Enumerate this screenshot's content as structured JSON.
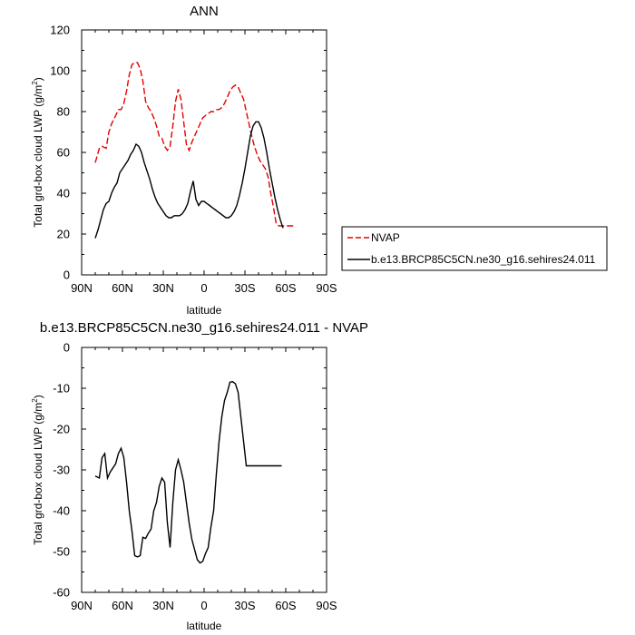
{
  "chart_data": [
    {
      "type": "line",
      "title": "ANN",
      "xlabel": "latitude",
      "ylabel": "Total grd-box cloud LWP (g/m",
      "ylabel_sup": "2",
      "ylabel_close": ")",
      "xlim": [
        90,
        -90
      ],
      "ylim": [
        0,
        120
      ],
      "xticks": [
        90,
        60,
        30,
        0,
        -30,
        -60,
        -90
      ],
      "xtick_labels": [
        "90N",
        "60N",
        "30N",
        "0",
        "30S",
        "60S",
        "90S"
      ],
      "yticks": [
        0,
        20,
        40,
        60,
        80,
        100,
        120
      ],
      "ytick_labels": [
        "0",
        "20",
        "40",
        "60",
        "80",
        "100",
        "120"
      ],
      "legend_position": "right",
      "series": [
        {
          "name": "NVAP",
          "color": "#e60000",
          "dash": "dashed",
          "x": [
            80,
            77,
            75,
            72,
            70,
            68,
            65,
            63,
            61,
            59,
            57,
            55,
            53,
            51,
            49,
            47,
            45,
            43,
            41,
            39,
            37,
            35,
            33,
            31,
            29,
            27,
            25,
            23,
            21,
            19,
            17,
            15,
            13,
            11,
            9,
            7,
            5,
            3,
            1,
            -1,
            -3,
            -5,
            -7,
            -9,
            -11,
            -13,
            -15,
            -17,
            -19,
            -21,
            -23,
            -25,
            -27,
            -29,
            -31,
            -33,
            -35,
            -37,
            -39,
            -41,
            -43,
            -45,
            -47,
            -49,
            -51,
            -53,
            -55,
            -57,
            -59,
            -61,
            -63,
            -65,
            -67,
            -69,
            -71,
            -73,
            -75,
            -77
          ],
          "values": [
            55,
            62,
            63,
            62,
            70,
            74,
            78,
            81,
            81,
            84,
            90,
            98,
            103,
            104,
            104,
            101,
            95,
            85,
            82,
            80,
            77,
            73,
            68,
            67,
            63,
            61,
            63,
            73,
            85,
            91,
            86,
            75,
            64,
            61,
            65,
            68,
            71,
            74,
            77,
            78,
            79,
            80,
            80,
            81,
            81,
            82,
            84,
            87,
            90,
            92,
            93,
            92,
            89,
            86,
            80,
            74,
            68,
            63,
            59,
            56,
            54,
            52,
            48,
            40,
            33,
            25,
            24,
            24,
            24,
            24,
            24,
            24,
            24,
            24,
            24,
            24,
            24,
            24
          ]
        },
        {
          "name": "b.e13.BRCP85C5CN.ne30_g16.sehires24.011",
          "color": "#000000",
          "dash": "solid",
          "x": [
            80,
            78,
            76,
            74,
            72,
            70,
            68,
            66,
            64,
            62,
            60,
            58,
            56,
            54,
            52,
            50,
            48,
            46,
            44,
            42,
            40,
            38,
            36,
            34,
            32,
            30,
            28,
            26,
            24,
            22,
            20,
            18,
            16,
            14,
            12,
            10,
            8,
            6,
            4,
            2,
            0,
            -2,
            -4,
            -6,
            -8,
            -10,
            -12,
            -14,
            -16,
            -18,
            -20,
            -22,
            -24,
            -26,
            -28,
            -30,
            -32,
            -34,
            -36,
            -38,
            -40,
            -42,
            -44,
            -46,
            -48,
            -50,
            -52,
            -54,
            -56,
            -58,
            -60,
            -62,
            -64,
            -66,
            -68
          ],
          "values": [
            18,
            22,
            27,
            32,
            35,
            36,
            40,
            43,
            45,
            50,
            52,
            54,
            56,
            59,
            61,
            64,
            63,
            60,
            55,
            51,
            47,
            42,
            38,
            35,
            33,
            31,
            29,
            28,
            28,
            29,
            29,
            29,
            30,
            32,
            35,
            41,
            46,
            37,
            34,
            36,
            36,
            35,
            34,
            33,
            32,
            31,
            30,
            29,
            28,
            28,
            29,
            31,
            34,
            39,
            45,
            52,
            60,
            68,
            73,
            75,
            75,
            72,
            67,
            60,
            52,
            45,
            38,
            32,
            27,
            23,
            23,
            23,
            23,
            23,
            23
          ]
        }
      ]
    },
    {
      "type": "line",
      "title": "b.e13.BRCP85C5CN.ne30_g16.sehires24.011 - NVAP",
      "xlabel": "latitude",
      "ylabel": "Total grd-box cloud LWP (g/m",
      "ylabel_sup": "2",
      "ylabel_close": ")",
      "xlim": [
        90,
        -90
      ],
      "ylim": [
        -60,
        0
      ],
      "xticks": [
        90,
        60,
        30,
        0,
        -30,
        -60,
        -90
      ],
      "xtick_labels": [
        "90N",
        "60N",
        "30N",
        "0",
        "30S",
        "60S",
        "90S"
      ],
      "yticks": [
        0,
        -10,
        -20,
        -30,
        -40,
        -50,
        -60
      ],
      "ytick_labels": [
        "0",
        "-10",
        "-20",
        "-30",
        "-40",
        "-50",
        "-60"
      ],
      "series": [
        {
          "color": "#000000",
          "dash": "solid",
          "x": [
            80,
            77,
            75,
            73,
            71,
            69,
            67,
            65,
            63,
            61,
            59,
            57,
            55,
            53,
            51,
            49,
            47,
            45,
            43,
            41,
            39,
            37,
            35,
            33,
            31,
            29,
            27,
            25,
            23,
            21,
            19,
            17,
            15,
            13,
            11,
            9,
            7,
            5,
            3,
            1,
            -1,
            -3,
            -5,
            -7,
            -9,
            -11,
            -13,
            -15,
            -17,
            -19,
            -21,
            -23,
            -25,
            -27,
            -29,
            -31,
            -33,
            -35,
            -37,
            -39,
            -41,
            -43,
            -45,
            -47,
            -49,
            -51,
            -53,
            -55,
            -57,
            -59,
            -61,
            -63,
            -65,
            -67
          ],
          "values": [
            -31.5,
            -32,
            -27,
            -26,
            -32,
            -30.5,
            -29.5,
            -28.5,
            -26,
            -24.7,
            -27,
            -33,
            -40,
            -45,
            -51,
            -51.3,
            -51,
            -46.5,
            -46.8,
            -45.5,
            -44.5,
            -40,
            -38,
            -34,
            -32,
            -33,
            -43,
            -49,
            -38,
            -30,
            -27.5,
            -30,
            -33,
            -38,
            -43,
            -47,
            -49.5,
            -52,
            -52.8,
            -52.4,
            -50.5,
            -49,
            -44,
            -40,
            -31,
            -23,
            -17,
            -13,
            -11,
            -8.5,
            -8.4,
            -8.9,
            -11,
            -17,
            -23,
            -29,
            -29,
            -29,
            -29,
            -29,
            -29,
            -29,
            -29,
            -29,
            -29,
            -29,
            -29,
            -29,
            -29,
            -29,
            -29,
            -29,
            -29,
            -29
          ]
        }
      ]
    }
  ]
}
